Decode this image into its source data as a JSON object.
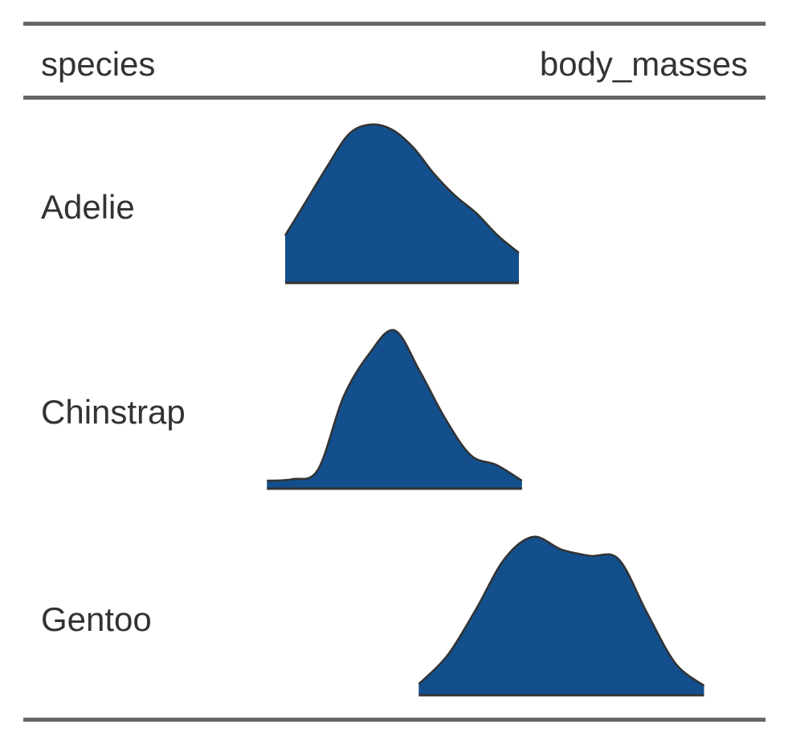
{
  "table": {
    "columns": [
      "species",
      "body_masses"
    ]
  },
  "chart_data": {
    "type": "table",
    "columns": [
      "species",
      "body_masses"
    ],
    "cell_chart_type": "density",
    "fill_color": "#124f8c",
    "stroke_color": "#333333",
    "x_range": [
      2400,
      6700
    ],
    "rows": [
      {
        "species": "Adelie",
        "range": [
          2850,
          4775
        ],
        "density": [
          0.3,
          0.52,
          0.74,
          0.94,
          1.0,
          0.97,
          0.86,
          0.69,
          0.55,
          0.44,
          0.3,
          0.19
        ]
      },
      {
        "species": "Chinstrap",
        "range": [
          2700,
          4800
        ],
        "density": [
          0.05,
          0.06,
          0.12,
          0.58,
          0.85,
          1.0,
          0.74,
          0.44,
          0.21,
          0.15,
          0.05
        ]
      },
      {
        "species": "Gentoo",
        "range": [
          3950,
          6300
        ],
        "density": [
          0.07,
          0.25,
          0.54,
          0.86,
          1.0,
          0.92,
          0.88,
          0.86,
          0.52,
          0.2,
          0.06
        ]
      }
    ]
  }
}
